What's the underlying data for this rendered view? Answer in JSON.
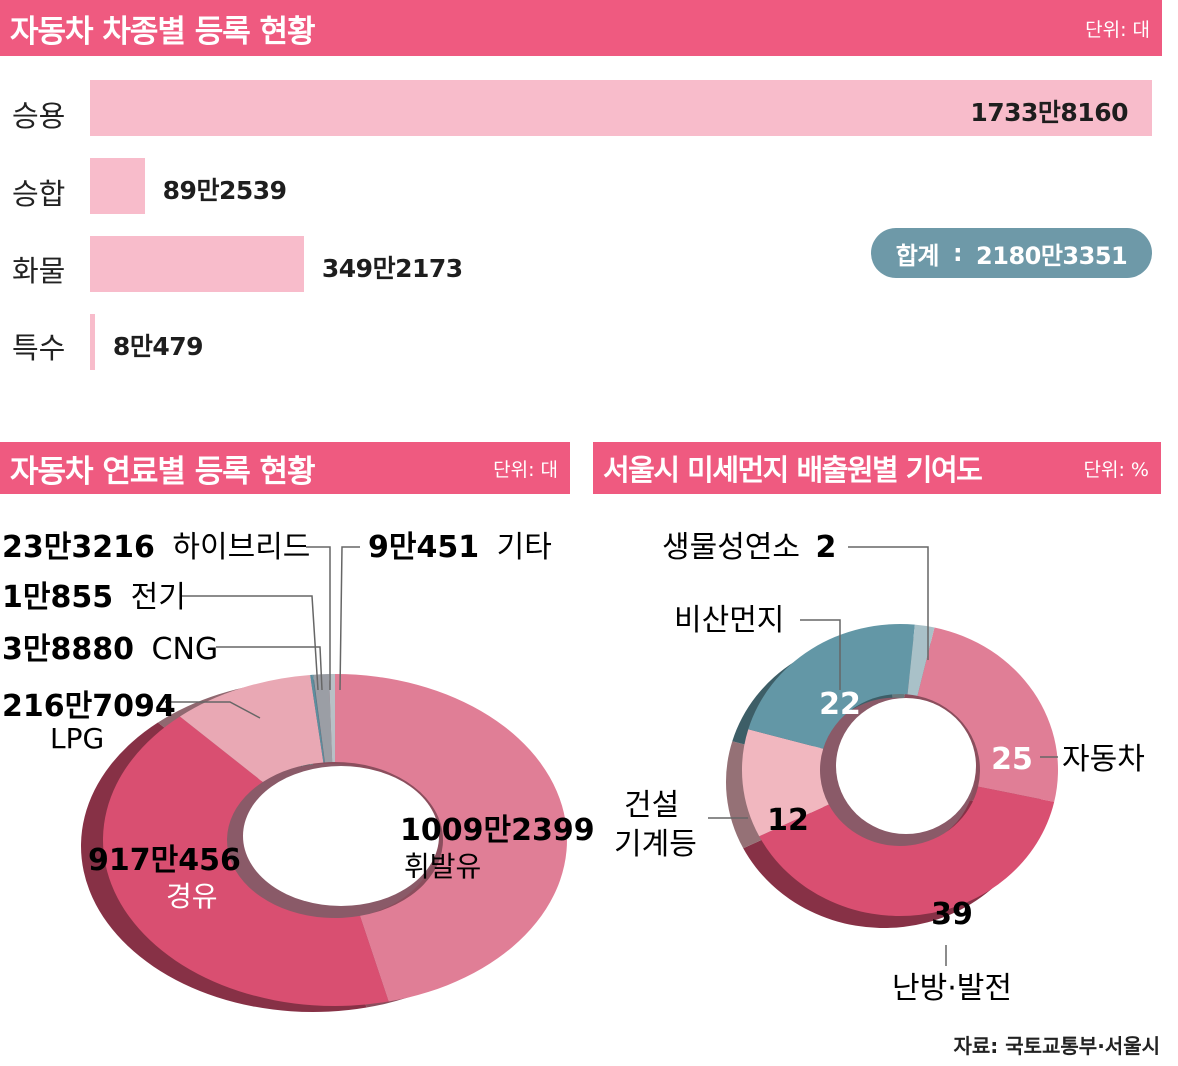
{
  "chart_data": [
    {
      "type": "bar",
      "title": "자동차 차종별 등록 현황",
      "unit": "단위: 대",
      "categories": [
        "승용",
        "승합",
        "화물",
        "특수"
      ],
      "values": [
        17338160,
        892539,
        3492173,
        80479
      ],
      "labels": [
        "1733만8160",
        "89만2539",
        "349만2173",
        "8만479"
      ],
      "total_label": "합계",
      "total_separator": ":",
      "total_value": "2180만3351"
    },
    {
      "type": "pie",
      "title": "자동차 연료별 등록 현황",
      "unit": "단위: 대",
      "slices": [
        {
          "name": "휘발유",
          "value": 10092399,
          "label": "1009만2399",
          "color": "#e07e96"
        },
        {
          "name": "경유",
          "value": 9170456,
          "label": "917만456",
          "color": "#d94f71"
        },
        {
          "name": "LPG",
          "value": 2167094,
          "label": "216만7094",
          "color": "#e9a8b4"
        },
        {
          "name": "CNG",
          "value": 38880,
          "label": "3만8880",
          "color": "#5d8f9f"
        },
        {
          "name": "전기",
          "value": 10855,
          "label": "1만855",
          "color": "#4f8090"
        },
        {
          "name": "하이브리드",
          "value": 233216,
          "label": "23만3216",
          "color": "#9b9ea5"
        },
        {
          "name": "기타",
          "value": 90451,
          "label": "9만451",
          "color": "#b8c0c6"
        }
      ]
    },
    {
      "type": "pie",
      "title": "서울시 미세먼지 배출원별 기여도",
      "unit": "단위: %",
      "slices": [
        {
          "name": "자동차",
          "value": 25,
          "label": "25",
          "color": "#e07e96"
        },
        {
          "name": "난방·발전",
          "value": 39,
          "label": "39",
          "color": "#d94f71"
        },
        {
          "name": "건설 기계등",
          "value": 12,
          "label": "12",
          "color": "#f1b7bf"
        },
        {
          "name": "비산먼지",
          "value": 22,
          "label": "22",
          "color": "#6397a6"
        },
        {
          "name": "생물성연소",
          "value": 2,
          "label": "2",
          "color": "#a9c1c8"
        }
      ]
    }
  ],
  "source": "자료: 국토교통부·서울시"
}
